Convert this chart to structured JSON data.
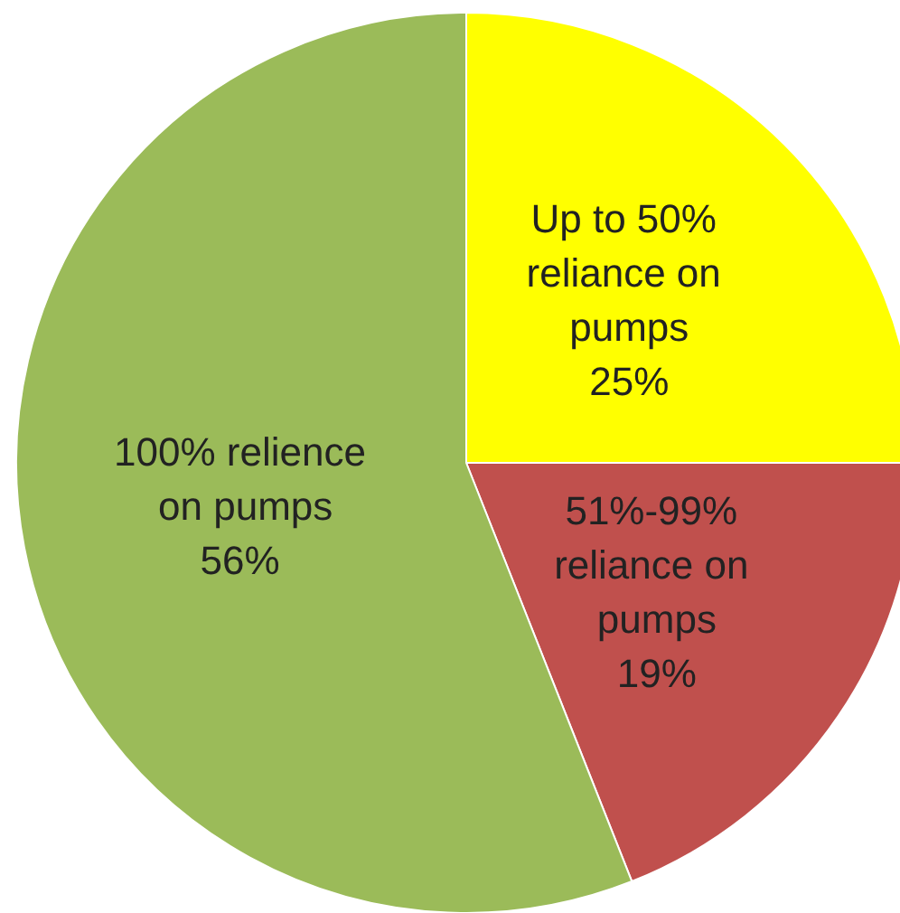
{
  "chart_data": {
    "type": "pie",
    "categories": [
      "Up to 50% reliance on pumps",
      "51%-99% reliance on pumps",
      "100% relience on pumps"
    ],
    "values": [
      25,
      19,
      56
    ],
    "value_labels": [
      "25%",
      "19%",
      "56%"
    ],
    "colors": [
      "#ffff00",
      "#c0504d",
      "#9bbb59"
    ]
  }
}
